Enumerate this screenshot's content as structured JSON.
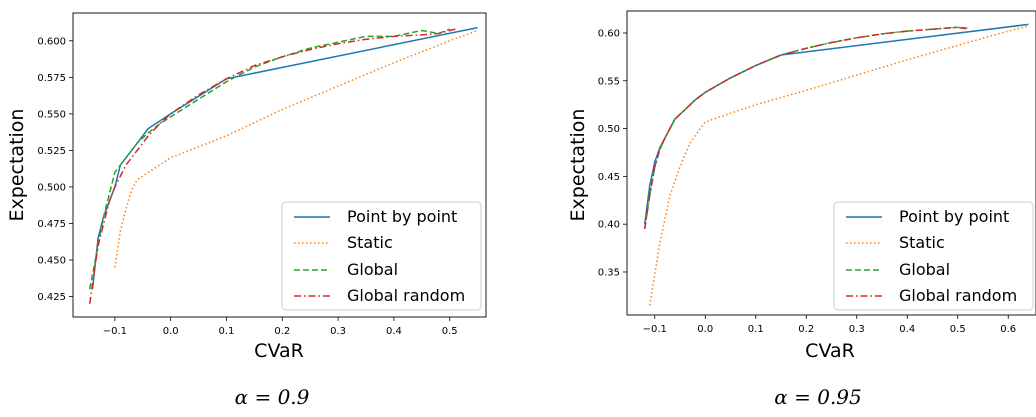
{
  "chart_data": [
    {
      "type": "line",
      "caption": "α = 0.9",
      "xlabel": "CVaR",
      "ylabel": "Expectation",
      "xlim": [
        -0.175,
        0.565
      ],
      "ylim": [
        0.411,
        0.619
      ],
      "xticks": [
        -0.1,
        0.0,
        0.1,
        0.2,
        0.3,
        0.4,
        0.5
      ],
      "xtick_labels": [
        "−0.1",
        "0.0",
        "0.1",
        "0.2",
        "0.3",
        "0.4",
        "0.5"
      ],
      "yticks": [
        0.425,
        0.45,
        0.475,
        0.5,
        0.525,
        0.55,
        0.575,
        0.6
      ],
      "ytick_labels": [
        "0.425",
        "0.450",
        "0.475",
        "0.500",
        "0.525",
        "0.550",
        "0.575",
        "0.600"
      ],
      "legend_position": "lower-right",
      "series": [
        {
          "name": "Point by point",
          "color": "#1f77b4",
          "dash": "solid",
          "x": [
            -0.14,
            -0.13,
            -0.12,
            -0.11,
            -0.1,
            -0.09,
            -0.08,
            -0.06,
            -0.04,
            -0.02,
            0.0,
            0.05,
            0.1,
            0.55
          ],
          "y": [
            0.43,
            0.465,
            0.48,
            0.49,
            0.5,
            0.515,
            0.52,
            0.53,
            0.54,
            0.545,
            0.55,
            0.562,
            0.574,
            0.609
          ]
        },
        {
          "name": "Static",
          "color": "#ff7f0e",
          "dash": "dotted",
          "x": [
            -0.1,
            -0.09,
            -0.08,
            -0.07,
            -0.06,
            0.0,
            0.1,
            0.2,
            0.3,
            0.4,
            0.5,
            0.55
          ],
          "y": [
            0.445,
            0.47,
            0.485,
            0.498,
            0.505,
            0.52,
            0.535,
            0.553,
            0.569,
            0.585,
            0.6,
            0.607
          ]
        },
        {
          "name": "Global",
          "color": "#2ca02c",
          "dash": "dashed",
          "x": [
            -0.145,
            -0.13,
            -0.12,
            -0.11,
            -0.1,
            -0.08,
            -0.06,
            -0.04,
            -0.02,
            0.0,
            0.05,
            0.1,
            0.15,
            0.2,
            0.25,
            0.3,
            0.35,
            0.4,
            0.45,
            0.48,
            0.5
          ],
          "y": [
            0.43,
            0.46,
            0.48,
            0.495,
            0.51,
            0.52,
            0.53,
            0.537,
            0.543,
            0.548,
            0.56,
            0.572,
            0.582,
            0.589,
            0.595,
            0.599,
            0.603,
            0.603,
            0.607,
            0.605,
            0.608
          ]
        },
        {
          "name": "Global random",
          "color": "#d62728",
          "dash": "dashdot",
          "x": [
            -0.145,
            -0.13,
            -0.12,
            -0.11,
            -0.1,
            -0.08,
            -0.06,
            -0.04,
            -0.02,
            0.0,
            0.05,
            0.1,
            0.15,
            0.2,
            0.25,
            0.3,
            0.35,
            0.4,
            0.45,
            0.48,
            0.51
          ],
          "y": [
            0.42,
            0.46,
            0.475,
            0.49,
            0.5,
            0.515,
            0.525,
            0.535,
            0.543,
            0.55,
            0.563,
            0.574,
            0.583,
            0.589,
            0.594,
            0.598,
            0.601,
            0.603,
            0.604,
            0.605,
            0.608
          ]
        }
      ]
    },
    {
      "type": "line",
      "caption": "α = 0.95",
      "xlabel": "CVaR",
      "ylabel": "Expectation",
      "xlim": [
        -0.155,
        0.655
      ],
      "ylim": [
        0.305,
        0.623
      ],
      "xticks": [
        -0.1,
        0.0,
        0.1,
        0.2,
        0.3,
        0.4,
        0.5,
        0.6
      ],
      "xtick_labels": [
        "−0.1",
        "0.0",
        "0.1",
        "0.2",
        "0.3",
        "0.4",
        "0.5",
        "0.6"
      ],
      "yticks": [
        0.35,
        0.4,
        0.45,
        0.5,
        0.55,
        0.6
      ],
      "ytick_labels": [
        "0.35",
        "0.40",
        "0.45",
        "0.50",
        "0.55",
        "0.60"
      ],
      "legend_position": "lower-right",
      "series": [
        {
          "name": "Point by point",
          "color": "#1f77b4",
          "dash": "solid",
          "x": [
            -0.12,
            -0.11,
            -0.1,
            -0.09,
            -0.08,
            -0.07,
            -0.06,
            -0.04,
            -0.02,
            0.0,
            0.05,
            0.1,
            0.15,
            0.64
          ],
          "y": [
            0.4,
            0.44,
            0.465,
            0.48,
            0.49,
            0.5,
            0.51,
            0.52,
            0.53,
            0.538,
            0.553,
            0.566,
            0.577,
            0.609
          ]
        },
        {
          "name": "Static",
          "color": "#ff7f0e",
          "dash": "dotted",
          "x": [
            -0.11,
            -0.09,
            -0.07,
            -0.05,
            -0.03,
            -0.01,
            0.0,
            0.1,
            0.2,
            0.3,
            0.4,
            0.5,
            0.6,
            0.64
          ],
          "y": [
            0.315,
            0.38,
            0.43,
            0.46,
            0.485,
            0.5,
            0.507,
            0.525,
            0.54,
            0.556,
            0.572,
            0.587,
            0.602,
            0.607
          ]
        },
        {
          "name": "Global",
          "color": "#2ca02c",
          "dash": "dashed",
          "x": [
            -0.12,
            -0.11,
            -0.1,
            -0.09,
            -0.08,
            -0.07,
            -0.06,
            -0.04,
            -0.02,
            0.0,
            0.05,
            0.1,
            0.15,
            0.2,
            0.25,
            0.3,
            0.35,
            0.4,
            0.45,
            0.5,
            0.52
          ],
          "y": [
            0.395,
            0.43,
            0.46,
            0.478,
            0.49,
            0.5,
            0.51,
            0.52,
            0.53,
            0.538,
            0.553,
            0.566,
            0.577,
            0.584,
            0.59,
            0.595,
            0.599,
            0.602,
            0.604,
            0.606,
            0.605
          ]
        },
        {
          "name": "Global random",
          "color": "#d62728",
          "dash": "dashdot",
          "x": [
            -0.12,
            -0.11,
            -0.1,
            -0.09,
            -0.08,
            -0.07,
            -0.06,
            -0.04,
            -0.02,
            0.0,
            0.05,
            0.1,
            0.15,
            0.2,
            0.25,
            0.3,
            0.35,
            0.4,
            0.45,
            0.5,
            0.52
          ],
          "y": [
            0.395,
            0.43,
            0.46,
            0.478,
            0.49,
            0.5,
            0.51,
            0.52,
            0.53,
            0.538,
            0.553,
            0.566,
            0.577,
            0.584,
            0.59,
            0.595,
            0.599,
            0.602,
            0.604,
            0.606,
            0.604
          ]
        }
      ]
    }
  ]
}
